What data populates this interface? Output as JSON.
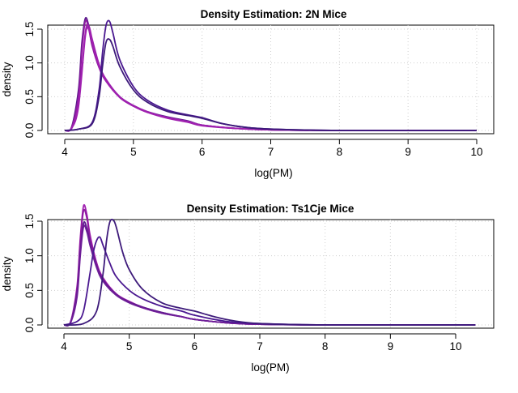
{
  "chart_data": [
    {
      "type": "line",
      "title": "Density Estimation: 2N Mice",
      "xlabel": "log(PM)",
      "ylabel": "density",
      "xlim": [
        4,
        10
      ],
      "ylim": [
        0,
        1.7
      ],
      "xticks": [
        "4",
        "5",
        "6",
        "7",
        "8",
        "9",
        "10"
      ],
      "yticks": [
        "0.0",
        "0.5",
        "1.0",
        "1.5"
      ],
      "grid": true,
      "series": [
        {
          "color": "#5b1a8b",
          "x": [
            4.0,
            4.1,
            4.2,
            4.25,
            4.3,
            4.35,
            4.4,
            4.5,
            4.6,
            4.8,
            5.0,
            5.2,
            5.5,
            5.8,
            6.0,
            6.5,
            7.0,
            8.0,
            10.0
          ],
          "y": [
            0.0,
            0.05,
            0.6,
            1.3,
            1.66,
            1.55,
            1.3,
            0.95,
            0.75,
            0.5,
            0.37,
            0.28,
            0.2,
            0.14,
            0.08,
            0.03,
            0.01,
            0.0,
            0.0
          ]
        },
        {
          "color": "#8e1aa0",
          "x": [
            4.0,
            4.1,
            4.2,
            4.25,
            4.3,
            4.35,
            4.4,
            4.5,
            4.6,
            4.8,
            5.0,
            5.2,
            5.5,
            5.8,
            6.0,
            6.5,
            7.0,
            8.0,
            10.0
          ],
          "y": [
            0.0,
            0.04,
            0.5,
            1.2,
            1.62,
            1.5,
            1.25,
            0.93,
            0.73,
            0.49,
            0.36,
            0.27,
            0.19,
            0.13,
            0.08,
            0.03,
            0.01,
            0.0,
            0.0
          ]
        },
        {
          "color": "#9b22ad",
          "x": [
            4.0,
            4.1,
            4.2,
            4.3,
            4.35,
            4.4,
            4.5,
            4.6,
            4.8,
            5.0,
            5.2,
            5.5,
            5.8,
            6.0,
            6.5,
            7.0,
            8.0,
            10.0
          ],
          "y": [
            0.0,
            0.03,
            0.4,
            1.45,
            1.55,
            1.35,
            0.98,
            0.76,
            0.5,
            0.37,
            0.28,
            0.19,
            0.13,
            0.08,
            0.03,
            0.01,
            0.0,
            0.0
          ]
        },
        {
          "color": "#a020b0",
          "x": [
            4.0,
            4.1,
            4.2,
            4.3,
            4.35,
            4.4,
            4.5,
            4.6,
            4.8,
            5.0,
            5.2,
            5.5,
            5.8,
            6.0,
            6.5,
            7.0,
            8.0,
            10.0
          ],
          "y": [
            0.0,
            0.03,
            0.35,
            1.4,
            1.5,
            1.3,
            0.95,
            0.74,
            0.49,
            0.36,
            0.27,
            0.18,
            0.12,
            0.07,
            0.03,
            0.01,
            0.0,
            0.0
          ]
        },
        {
          "color": "#4a1890",
          "x": [
            4.0,
            4.2,
            4.4,
            4.5,
            4.55,
            4.6,
            4.65,
            4.7,
            4.8,
            5.0,
            5.2,
            5.5,
            5.8,
            6.0,
            6.3,
            6.6,
            7.0,
            8.0,
            10.0
          ],
          "y": [
            0.0,
            0.02,
            0.12,
            0.6,
            1.15,
            1.55,
            1.62,
            1.45,
            1.05,
            0.65,
            0.45,
            0.3,
            0.23,
            0.19,
            0.1,
            0.05,
            0.02,
            0.0,
            0.0
          ]
        },
        {
          "color": "#3d1a7a",
          "x": [
            4.0,
            4.2,
            4.4,
            4.5,
            4.55,
            4.6,
            4.65,
            4.7,
            4.8,
            5.0,
            5.2,
            5.5,
            5.8,
            6.0,
            6.3,
            6.6,
            7.0,
            8.0,
            10.0
          ],
          "y": [
            0.0,
            0.02,
            0.1,
            0.5,
            0.95,
            1.3,
            1.35,
            1.25,
            0.95,
            0.6,
            0.42,
            0.28,
            0.22,
            0.18,
            0.1,
            0.05,
            0.02,
            0.0,
            0.0
          ]
        }
      ]
    },
    {
      "type": "line",
      "title": "Density Estimation: Ts1Cje Mice",
      "xlabel": "log(PM)",
      "ylabel": "density",
      "xlim": [
        4,
        10.3
      ],
      "ylim": [
        0,
        1.8
      ],
      "xticks": [
        "4",
        "5",
        "6",
        "7",
        "8",
        "9",
        "10"
      ],
      "yticks": [
        "0.0",
        "0.5",
        "1.0",
        "1.5"
      ],
      "grid": true,
      "series": [
        {
          "color": "#a020b0",
          "x": [
            4.0,
            4.1,
            4.2,
            4.25,
            4.3,
            4.35,
            4.4,
            4.5,
            4.6,
            4.8,
            5.0,
            5.2,
            5.5,
            5.8,
            6.0,
            6.5,
            7.0,
            8.0,
            10.3
          ],
          "y": [
            0.0,
            0.04,
            0.55,
            1.25,
            1.72,
            1.6,
            1.3,
            0.9,
            0.68,
            0.45,
            0.34,
            0.26,
            0.18,
            0.12,
            0.08,
            0.03,
            0.01,
            0.0,
            0.0
          ]
        },
        {
          "color": "#8e1aa0",
          "x": [
            4.0,
            4.1,
            4.2,
            4.25,
            4.3,
            4.35,
            4.4,
            4.5,
            4.6,
            4.8,
            5.0,
            5.2,
            5.5,
            5.8,
            6.0,
            6.5,
            7.0,
            8.0,
            10.3
          ],
          "y": [
            0.0,
            0.04,
            0.5,
            1.2,
            1.65,
            1.55,
            1.26,
            0.88,
            0.66,
            0.44,
            0.33,
            0.25,
            0.17,
            0.12,
            0.08,
            0.03,
            0.01,
            0.0,
            0.0
          ]
        },
        {
          "color": "#5b1a8b",
          "x": [
            4.0,
            4.1,
            4.2,
            4.25,
            4.3,
            4.35,
            4.4,
            4.5,
            4.6,
            4.8,
            5.0,
            5.2,
            5.5,
            5.8,
            6.0,
            6.5,
            7.0,
            8.0,
            10.3
          ],
          "y": [
            0.0,
            0.03,
            0.45,
            1.05,
            1.47,
            1.4,
            1.18,
            0.85,
            0.65,
            0.44,
            0.33,
            0.26,
            0.18,
            0.12,
            0.08,
            0.03,
            0.01,
            0.0,
            0.0
          ]
        },
        {
          "color": "#6e1e98",
          "x": [
            4.0,
            4.1,
            4.2,
            4.25,
            4.3,
            4.35,
            4.4,
            4.5,
            4.6,
            4.8,
            5.0,
            5.2,
            5.5,
            5.8,
            6.0,
            6.5,
            7.0,
            8.0,
            10.3
          ],
          "y": [
            0.0,
            0.03,
            0.4,
            1.0,
            1.42,
            1.35,
            1.15,
            0.83,
            0.63,
            0.43,
            0.32,
            0.25,
            0.17,
            0.12,
            0.08,
            0.03,
            0.01,
            0.0,
            0.0
          ]
        },
        {
          "color": "#4a1890",
          "x": [
            4.0,
            4.2,
            4.3,
            4.4,
            4.45,
            4.5,
            4.55,
            4.6,
            4.7,
            4.8,
            5.0,
            5.2,
            5.5,
            5.8,
            6.0,
            6.5,
            7.0,
            8.0,
            10.3
          ],
          "y": [
            0.0,
            0.05,
            0.2,
            0.75,
            1.05,
            1.22,
            1.27,
            1.15,
            0.9,
            0.7,
            0.5,
            0.38,
            0.27,
            0.2,
            0.14,
            0.05,
            0.02,
            0.0,
            0.0
          ]
        },
        {
          "color": "#3d1a7a",
          "x": [
            4.0,
            4.3,
            4.5,
            4.6,
            4.65,
            4.7,
            4.75,
            4.8,
            4.9,
            5.0,
            5.2,
            5.5,
            5.8,
            6.0,
            6.3,
            6.6,
            7.0,
            8.0,
            10.3
          ],
          "y": [
            0.0,
            0.02,
            0.2,
            0.75,
            1.2,
            1.48,
            1.52,
            1.42,
            1.05,
            0.8,
            0.52,
            0.32,
            0.24,
            0.2,
            0.12,
            0.06,
            0.02,
            0.0,
            0.0
          ]
        }
      ]
    }
  ]
}
